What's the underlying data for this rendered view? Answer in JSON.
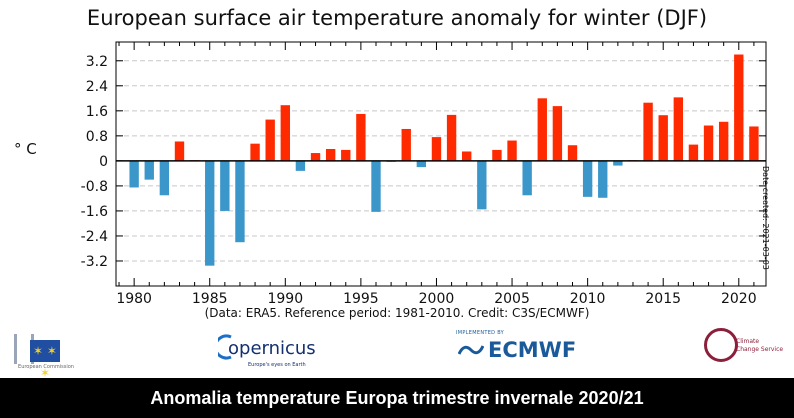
{
  "title": "European surface air temperature anomaly for winter (DJF)",
  "unit_label": "° C",
  "credits": "(Data: ERA5.  Reference period: 1981-2010.  Credit: C3S/ECMWF)",
  "date_created": "Date created: 2021-03-03",
  "banner": "Anomalia temperature Europa trimestre invernale 2020/21",
  "logos": {
    "copernicus": "opernicus",
    "copernicus_sub": "Europe's eyes on Earth",
    "ecmwf": "ECMWF",
    "ecmwf_small": "IMPLEMENTED BY",
    "c3s_line1": "Climate",
    "c3s_line2": "Change Service",
    "eu_text": "European Commission"
  },
  "colors": {
    "positive": "#ff2a00",
    "negative": "#3b97c9",
    "grid": "#c8c8c8",
    "banner": "#000000",
    "ecmwf": "#1a5a9a",
    "c3s": "#8c1f3b"
  },
  "chart_data": {
    "type": "bar",
    "title": "European surface air temperature anomaly for winter (DJF)",
    "ylabel": "° C",
    "xlabel": "",
    "x": [
      1980,
      1981,
      1982,
      1983,
      1984,
      1985,
      1986,
      1987,
      1988,
      1989,
      1990,
      1991,
      1992,
      1993,
      1994,
      1995,
      1996,
      1997,
      1998,
      1999,
      2000,
      2001,
      2002,
      2003,
      2004,
      2005,
      2006,
      2007,
      2008,
      2009,
      2010,
      2011,
      2012,
      2013,
      2014,
      2015,
      2016,
      2017,
      2018,
      2019,
      2020,
      2021
    ],
    "values": [
      -0.85,
      -0.6,
      -1.1,
      0.62,
      0.02,
      -3.35,
      -1.6,
      -2.6,
      0.55,
      1.32,
      1.78,
      -0.32,
      0.25,
      0.38,
      0.35,
      1.5,
      -1.63,
      -0.02,
      1.02,
      -0.2,
      0.76,
      1.47,
      0.3,
      -1.55,
      0.35,
      0.65,
      -1.1,
      2.0,
      1.75,
      0.5,
      -1.15,
      -1.18,
      -0.15,
      0.02,
      1.86,
      1.46,
      2.03,
      0.52,
      1.13,
      1.25,
      3.4,
      1.1
    ],
    "xticks": [
      "1980",
      "1985",
      "1990",
      "1995",
      "2000",
      "2005",
      "2010",
      "2015",
      "2020"
    ],
    "yticks": [
      "-3.2",
      "-2.4",
      "-1.6",
      "-0.8",
      "0",
      "0.8",
      "1.6",
      "2.4",
      "3.2"
    ],
    "ylim": [
      -4.0,
      3.8
    ],
    "xlim": [
      1978.8,
      2021.8
    ],
    "grid": true
  }
}
